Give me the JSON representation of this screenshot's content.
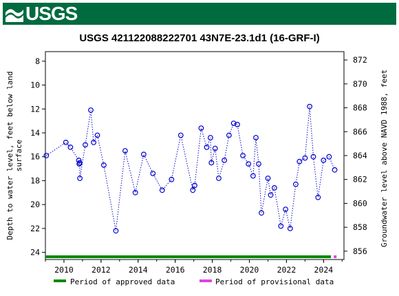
{
  "header": {
    "logo_text": "USGS",
    "brand_color": "#006b3f"
  },
  "chart_data": {
    "type": "scatter",
    "title": "USGS 421122088222701 43N7E-23.1d1 (16-GRF-I)",
    "ylabel_left_line1": "Depth to water level, feet below land",
    "ylabel_left_line2": "surface",
    "ylabel_right": "Groundwater level above NAVD 1988, feet",
    "x_ticks": [
      "2010",
      "2012",
      "2014",
      "2016",
      "2018",
      "2020",
      "2022",
      "2024"
    ],
    "y_left_ticks": [
      "8",
      "10",
      "12",
      "14",
      "16",
      "18",
      "20",
      "22",
      "24"
    ],
    "y_right_ticks": [
      "872",
      "870",
      "868",
      "866",
      "864",
      "862",
      "860",
      "858",
      "856"
    ],
    "xlim": [
      2009.0,
      2025.1
    ],
    "ylim_left": [
      24.6,
      7.2
    ],
    "datum_offset": 879.9,
    "series_color": "#0000cc",
    "series": [
      {
        "marker": "open-circle",
        "line": "dotted",
        "points": [
          [
            2009.05,
            15.9
          ],
          [
            2010.1,
            14.8
          ],
          [
            2010.35,
            15.2
          ],
          [
            2010.8,
            16.3
          ],
          [
            2010.82,
            16.6
          ],
          [
            2010.85,
            16.5
          ],
          [
            2010.86,
            17.8
          ],
          [
            2011.15,
            15.0
          ],
          [
            2011.45,
            12.1
          ],
          [
            2011.6,
            14.8
          ],
          [
            2011.8,
            14.2
          ],
          [
            2012.15,
            16.7
          ],
          [
            2012.8,
            22.2
          ],
          [
            2013.3,
            15.5
          ],
          [
            2013.85,
            19.0
          ],
          [
            2014.3,
            15.8
          ],
          [
            2014.8,
            17.4
          ],
          [
            2015.3,
            18.8
          ],
          [
            2015.8,
            17.9
          ],
          [
            2016.3,
            14.2
          ],
          [
            2016.95,
            18.8
          ],
          [
            2017.05,
            18.4
          ],
          [
            2017.4,
            13.6
          ],
          [
            2017.7,
            15.2
          ],
          [
            2017.9,
            14.4
          ],
          [
            2017.95,
            16.5
          ],
          [
            2018.15,
            15.3
          ],
          [
            2018.35,
            17.8
          ],
          [
            2018.65,
            16.3
          ],
          [
            2018.9,
            14.2
          ],
          [
            2019.15,
            13.2
          ],
          [
            2019.35,
            13.3
          ],
          [
            2019.65,
            15.9
          ],
          [
            2019.95,
            16.6
          ],
          [
            2020.2,
            17.6
          ],
          [
            2020.35,
            14.4
          ],
          [
            2020.5,
            16.6
          ],
          [
            2020.65,
            20.7
          ],
          [
            2021.0,
            17.8
          ],
          [
            2021.15,
            19.2
          ],
          [
            2021.35,
            18.6
          ],
          [
            2021.7,
            21.8
          ],
          [
            2021.95,
            20.4
          ],
          [
            2022.2,
            22.0
          ],
          [
            2022.5,
            18.3
          ],
          [
            2022.7,
            16.4
          ],
          [
            2023.0,
            16.1
          ],
          [
            2023.25,
            11.8
          ],
          [
            2023.45,
            16.0
          ],
          [
            2023.7,
            19.4
          ],
          [
            2024.0,
            16.3
          ],
          [
            2024.3,
            16.0
          ],
          [
            2024.6,
            17.1
          ]
        ]
      }
    ],
    "periods": [
      {
        "label": "Period of approved data",
        "color": "#008800",
        "start": 2009.0,
        "end": 2024.4
      },
      {
        "label": "Period of provisional data",
        "color": "#dd44dd",
        "start": 2024.55,
        "end": 2024.7
      }
    ],
    "grid": false,
    "legend_position": "bottom"
  }
}
